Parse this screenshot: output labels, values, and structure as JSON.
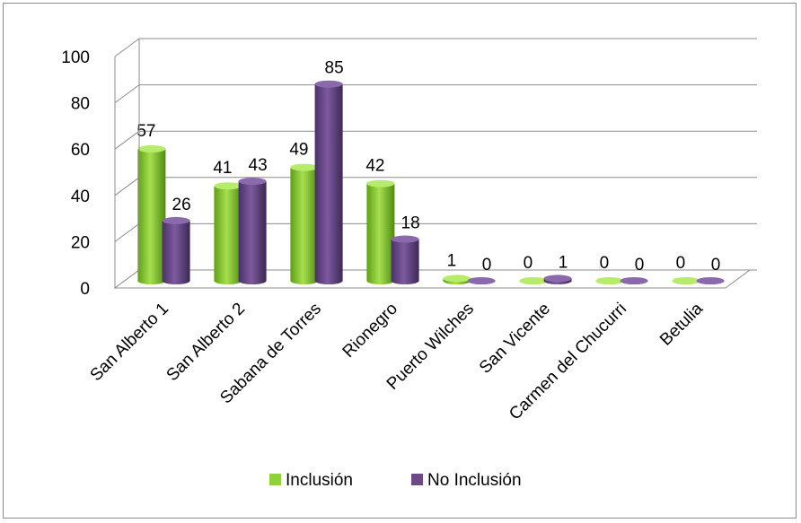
{
  "chart_data": {
    "type": "bar",
    "categories": [
      "San Alberto 1",
      "San Alberto 2",
      "Sabana de Torres",
      "Rionegro",
      "Puerto Wilches",
      "San Vicente",
      "Carmen del Chucurri",
      "Betulia"
    ],
    "series": [
      {
        "name": "Inclusión",
        "values": [
          57,
          41,
          49,
          42,
          1,
          0,
          0,
          0
        ],
        "color": "#8fd13a"
      },
      {
        "name": "No Inclusión",
        "values": [
          26,
          43,
          85,
          18,
          0,
          1,
          0,
          0
        ],
        "color": "#6b4a87"
      }
    ],
    "y_ticks": [
      "0",
      "20",
      "40",
      "60",
      "80",
      "100"
    ],
    "ylim": [
      0,
      100
    ],
    "grid": true,
    "legend_position": "bottom",
    "style": "3d-cylinder"
  }
}
